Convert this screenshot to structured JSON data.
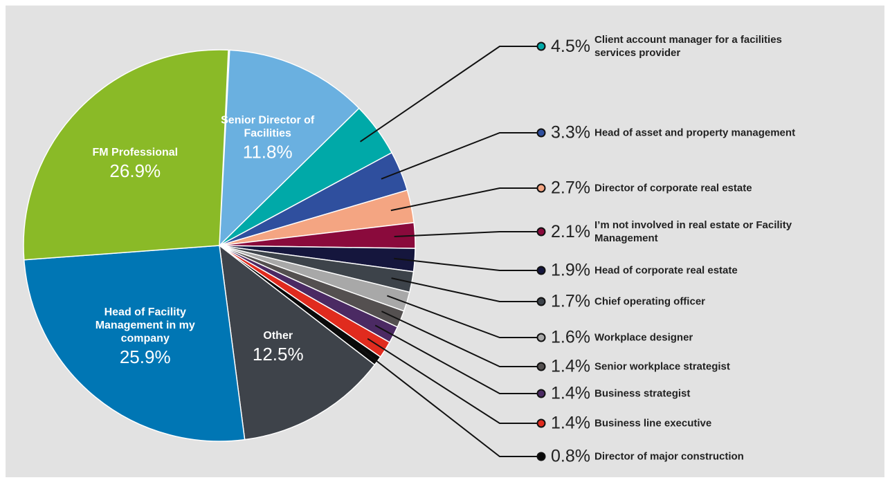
{
  "chart_data": {
    "type": "pie",
    "categories": [
      "Senior Director of Facilities",
      "Client account manager for a facilities services provider",
      "Head of asset and property management",
      "Director of corporate real estate",
      "I’m not involved in real estate or Facility Management",
      "Head of corporate real estate",
      "Chief operating officer",
      "Workplace designer",
      "Senior workplace strategist",
      "Business strategist",
      "Business line executive",
      "Director of major construction",
      "Other",
      "Head of Facility Management in my company",
      "FM Professional"
    ],
    "values": [
      11.8,
      4.5,
      3.3,
      2.7,
      2.1,
      1.9,
      1.7,
      1.6,
      1.4,
      1.4,
      1.4,
      0.8,
      12.5,
      25.9,
      26.9
    ],
    "value_labels": [
      "11.8%",
      "4.5%",
      "3.3%",
      "2.7%",
      "2.1%",
      "1.9%",
      "1.7%",
      "1.6%",
      "1.4%",
      "1.4%",
      "1.4%",
      "0.8%",
      "12.5%",
      "25.9%",
      "26.9%"
    ],
    "colors": [
      "#6ab0e0",
      "#00a9a8",
      "#2f4f9e",
      "#f4a582",
      "#8a0a3c",
      "#15163d",
      "#3d434a",
      "#a8a8a8",
      "#545050",
      "#4b2a63",
      "#e02b1e",
      "#0a0a0a",
      "#3e434a",
      "#0076b4",
      "#8aba27"
    ]
  }
}
